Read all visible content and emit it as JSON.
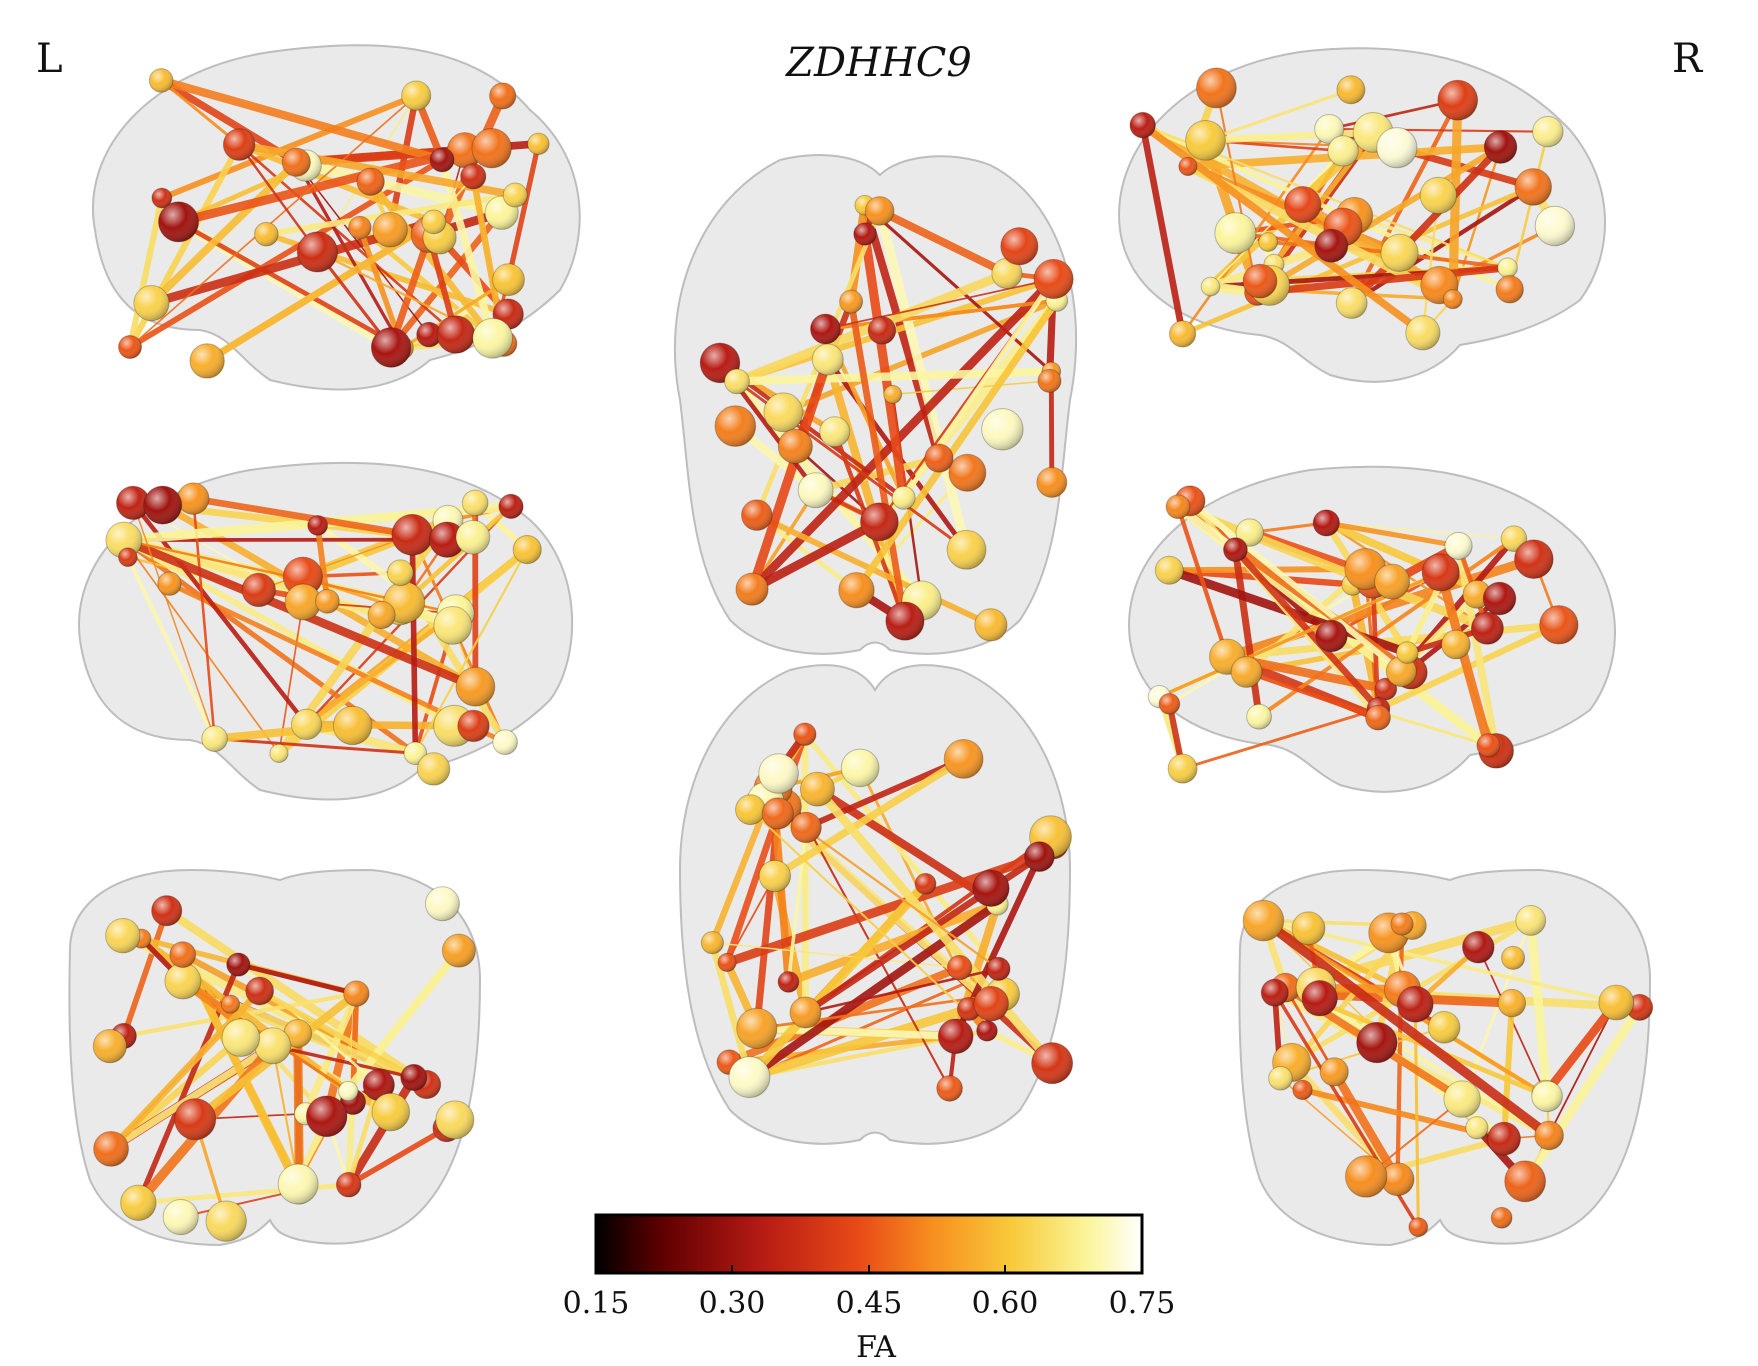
{
  "figure": {
    "title": "ZDHHC9",
    "side_left": "L",
    "side_right": "R"
  },
  "views": [
    {
      "name": "left-lateral-top"
    },
    {
      "name": "left-lateral-middle"
    },
    {
      "name": "posterior-coronal"
    },
    {
      "name": "dorsal-axial"
    },
    {
      "name": "ventral-axial"
    },
    {
      "name": "right-lateral-top"
    },
    {
      "name": "right-lateral-middle"
    },
    {
      "name": "anterior-coronal"
    }
  ],
  "colorbar": {
    "label": "FA",
    "min": 0.15,
    "max": 0.75,
    "ticks": [
      "0.15",
      "0.30",
      "0.45",
      "0.60",
      "0.75"
    ],
    "colormap": [
      "#000000",
      "#5e0000",
      "#b51a14",
      "#e84a17",
      "#f7901f",
      "#f8c93a",
      "#fbf59a",
      "#ffffff"
    ]
  }
}
